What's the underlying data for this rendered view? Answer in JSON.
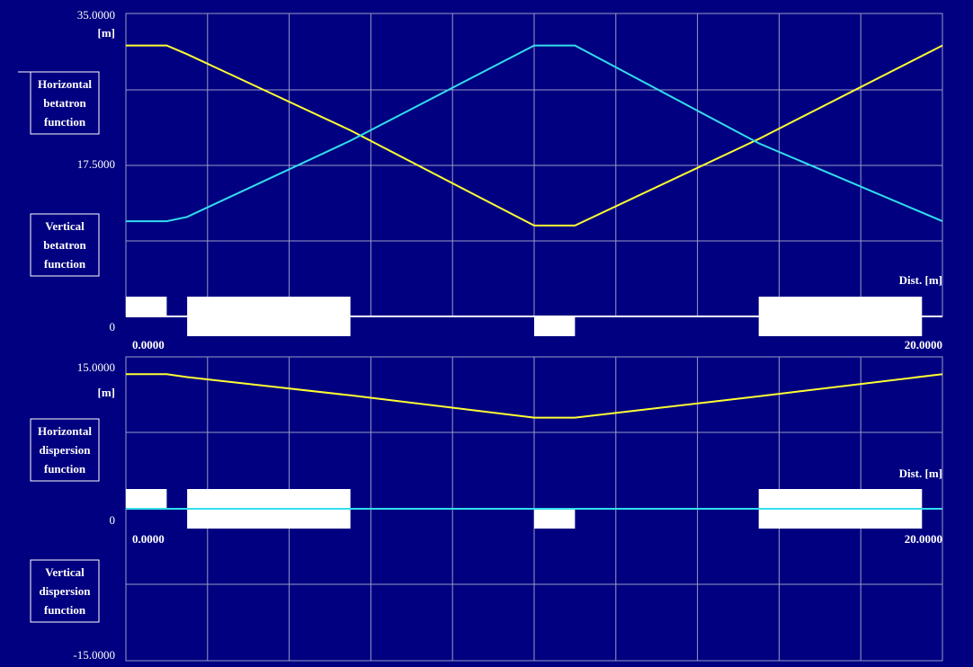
{
  "colors": {
    "background": "#000080",
    "grid": "#9a9ac8",
    "horizontal": "#ffff33",
    "vertical": "#33ddee",
    "element": "#ffffff"
  },
  "chart_data": [
    {
      "type": "line",
      "title": "",
      "x_range": [
        0,
        20
      ],
      "ylim": [
        0,
        35
      ],
      "y_ticks": [
        "35.0000",
        "17.5000",
        "0"
      ],
      "unit_label": "[m]",
      "x_axis_label": "Dist. [m]",
      "x_ticks": [
        "0.0000",
        "20.0000"
      ],
      "legend": [
        {
          "lines": [
            "Horizontal",
            "betatron",
            "function"
          ]
        },
        {
          "lines": [
            "Vertical",
            "betatron",
            "function"
          ]
        }
      ],
      "series": [
        {
          "key": "horizontal",
          "x": [
            0,
            1,
            1.5,
            5.5,
            10,
            11,
            15.5,
            20
          ],
          "y": [
            31.3,
            31.3,
            30.3,
            21.5,
            10.5,
            10.5,
            20.5,
            31.3
          ]
        },
        {
          "key": "vertical",
          "x": [
            0,
            1,
            1.5,
            5.5,
            10,
            11,
            15.5,
            20
          ],
          "y": [
            11.0,
            11.0,
            11.5,
            20.3,
            31.3,
            31.3,
            20.0,
            11.0
          ]
        }
      ],
      "elements": [
        {
          "s0": 0.0,
          "s1": 1.0,
          "side": "up"
        },
        {
          "s0": 1.5,
          "s1": 5.5,
          "side": "both"
        },
        {
          "s0": 10.0,
          "s1": 11.0,
          "side": "down"
        },
        {
          "s0": 15.5,
          "s1": 19.5,
          "side": "both"
        }
      ]
    },
    {
      "type": "line",
      "title": "",
      "x_range": [
        0,
        20
      ],
      "ylim": [
        -15,
        15
      ],
      "y_ticks": [
        "15.0000",
        "0",
        "-15.0000"
      ],
      "unit_label": "[m]",
      "x_axis_label": "Dist. [m]",
      "x_ticks": [
        "0.0000",
        "20.0000"
      ],
      "legend": [
        {
          "lines": [
            "Horizontal",
            "dispersion",
            "function"
          ]
        },
        {
          "lines": [
            "Vertical",
            "dispersion",
            "function"
          ]
        }
      ],
      "series": [
        {
          "key": "horizontal",
          "x": [
            0,
            1,
            1.5,
            5.5,
            10,
            11,
            15.5,
            20
          ],
          "y": [
            13.3,
            13.3,
            13.0,
            11.2,
            9.0,
            9.0,
            11.1,
            13.3
          ]
        },
        {
          "key": "vertical",
          "x": [
            0,
            20
          ],
          "y": [
            0,
            0
          ]
        }
      ],
      "elements": [
        {
          "s0": 0.0,
          "s1": 1.0,
          "side": "up"
        },
        {
          "s0": 1.5,
          "s1": 5.5,
          "side": "both"
        },
        {
          "s0": 10.0,
          "s1": 11.0,
          "side": "down"
        },
        {
          "s0": 15.5,
          "s1": 19.5,
          "side": "both"
        }
      ]
    }
  ]
}
